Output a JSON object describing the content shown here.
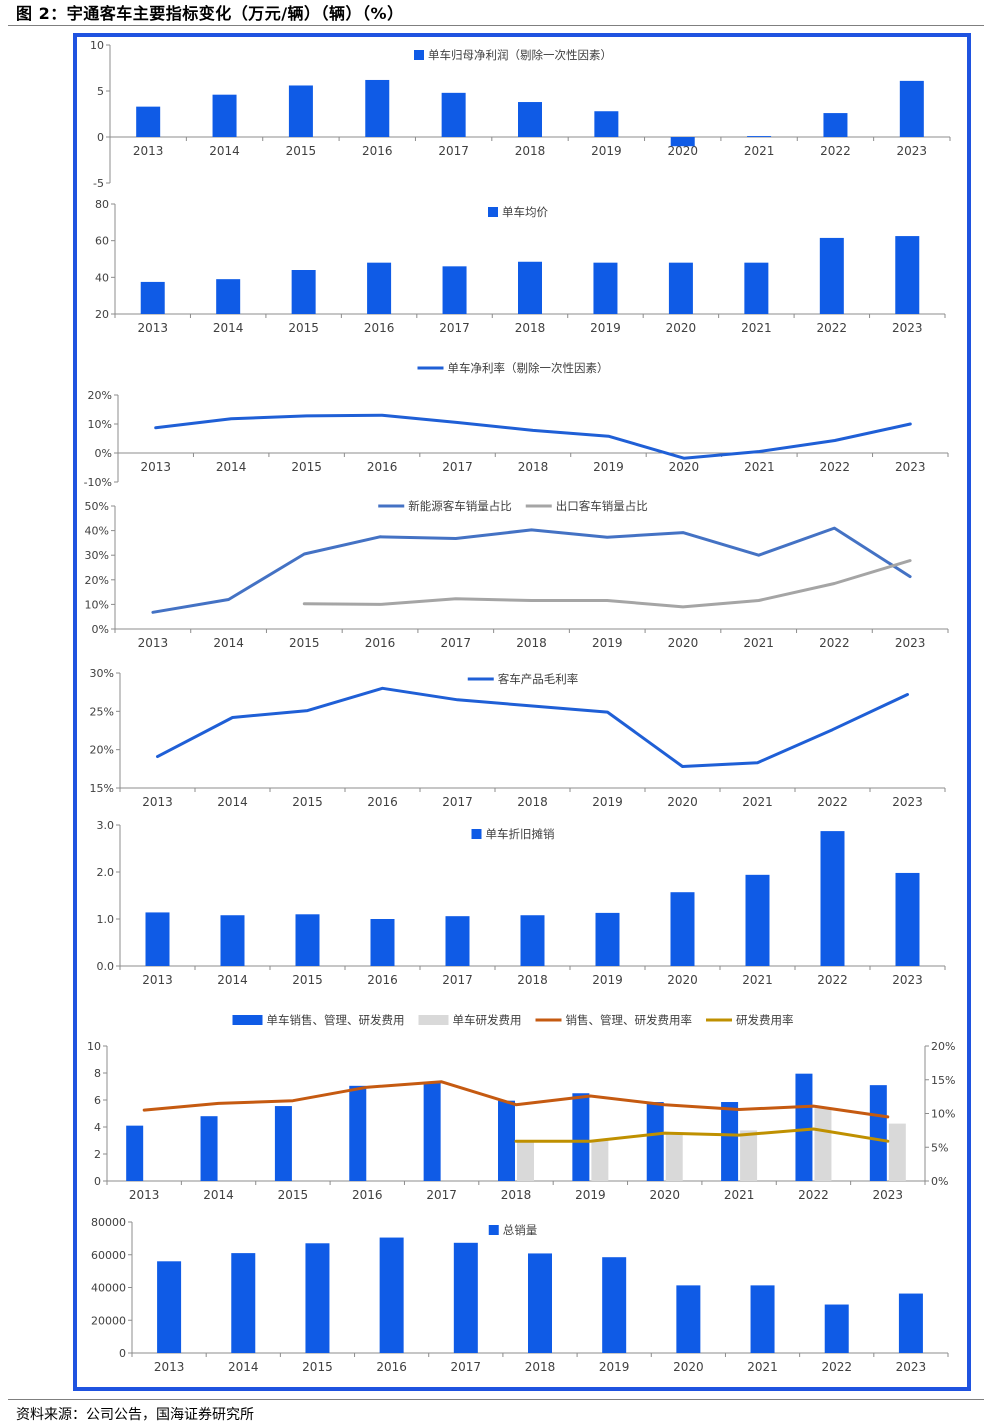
{
  "figure": {
    "title": "图 2：宇通客车主要指标变化（万元/辆）（辆）（%）",
    "source": "资料来源：公司公告，国海证券研究所",
    "accent_color": "#0f5be6",
    "frame_color": "#1f53e0"
  },
  "chart_data": [
    {
      "type": "bar",
      "categories": [
        "2013",
        "2014",
        "2015",
        "2016",
        "2017",
        "2018",
        "2019",
        "2020",
        "2021",
        "2022",
        "2023"
      ],
      "series": [
        {
          "name": "单车归母净利润（剔除一次性因素）",
          "values": [
            3.3,
            4.6,
            5.6,
            6.2,
            4.8,
            3.8,
            2.8,
            -1.0,
            0.1,
            2.6,
            6.1
          ],
          "color": "#0f5be6"
        }
      ],
      "yticks": [
        "10",
        "5",
        "0",
        "-5"
      ],
      "ylim": [
        -5,
        10
      ],
      "legend": "top-center"
    },
    {
      "type": "bar",
      "categories": [
        "2013",
        "2014",
        "2015",
        "2016",
        "2017",
        "2018",
        "2019",
        "2020",
        "2021",
        "2022",
        "2023"
      ],
      "series": [
        {
          "name": "单车均价",
          "values": [
            37.5,
            39,
            44,
            48,
            46,
            48.5,
            48,
            48,
            48,
            61.5,
            62.5
          ],
          "color": "#0f5be6"
        }
      ],
      "yticks": [
        "80",
        "60",
        "40",
        "20"
      ],
      "ylim": [
        20,
        80
      ],
      "legend": "top-center"
    },
    {
      "type": "line",
      "categories": [
        "2013",
        "2014",
        "2015",
        "2016",
        "2017",
        "2018",
        "2019",
        "2020",
        "2021",
        "2022",
        "2023"
      ],
      "series": [
        {
          "name": "单车净利率（剔除一次性因素）",
          "values": [
            8.7,
            11.8,
            12.8,
            13.0,
            10.5,
            7.8,
            5.8,
            -1.8,
            0.5,
            4.3,
            10.0
          ],
          "color": "#1f5fd6"
        }
      ],
      "yticks": [
        "20%",
        "10%",
        "0%",
        "-10%"
      ],
      "ylim": [
        -10,
        20
      ],
      "legend": "top-center"
    },
    {
      "type": "line",
      "categories": [
        "2013",
        "2014",
        "2015",
        "2016",
        "2017",
        "2018",
        "2019",
        "2020",
        "2021",
        "2022",
        "2023"
      ],
      "series": [
        {
          "name": "新能源客车销量占比",
          "values": [
            6.8,
            12,
            30.5,
            37.5,
            36.8,
            40.3,
            37.3,
            39.2,
            30,
            41,
            21.3
          ],
          "color": "#4472c4"
        },
        {
          "name": "出口客车销量占比",
          "values": [
            null,
            null,
            10.3,
            10,
            12.3,
            11.6,
            11.6,
            9,
            11.6,
            18.5,
            27.8
          ],
          "color": "#a5a5a5"
        }
      ],
      "yticks": [
        "50%",
        "40%",
        "30%",
        "20%",
        "10%",
        "0%"
      ],
      "ylim": [
        0,
        50
      ],
      "legend": "top-center"
    },
    {
      "type": "line",
      "categories": [
        "2013",
        "2014",
        "2015",
        "2016",
        "2017",
        "2018",
        "2019",
        "2020",
        "2021",
        "2022",
        "2023"
      ],
      "series": [
        {
          "name": "客车产品毛利率",
          "values": [
            19.1,
            24.2,
            25.1,
            28,
            26.5,
            25.7,
            24.9,
            17.8,
            18.3,
            22.6,
            27.2
          ],
          "color": "#1f5fd6"
        }
      ],
      "yticks": [
        "30%",
        "25%",
        "20%",
        "15%"
      ],
      "ylim": [
        15,
        30
      ],
      "legend": "top-center"
    },
    {
      "type": "bar",
      "categories": [
        "2013",
        "2014",
        "2015",
        "2016",
        "2017",
        "2018",
        "2019",
        "2020",
        "2021",
        "2022",
        "2023"
      ],
      "series": [
        {
          "name": "单车折旧摊销",
          "values": [
            1.14,
            1.08,
            1.1,
            1.0,
            1.06,
            1.08,
            1.13,
            1.57,
            1.94,
            2.87,
            1.98
          ],
          "color": "#0f5be6"
        }
      ],
      "yticks": [
        "3.0",
        "2.0",
        "1.0",
        "0.0"
      ],
      "ylim": [
        0,
        3
      ],
      "legend": "top-center"
    },
    {
      "type": "bar",
      "categories": [
        "2013",
        "2014",
        "2015",
        "2016",
        "2017",
        "2018",
        "2019",
        "2020",
        "2021",
        "2022",
        "2023"
      ],
      "series": [
        {
          "name": "单车销售、管理、研发费用",
          "values": [
            4.1,
            4.8,
            5.55,
            7.05,
            7.35,
            5.95,
            6.5,
            5.85,
            5.85,
            7.95,
            7.1
          ],
          "color": "#0f5be6",
          "axis": "left",
          "mark": "bar"
        },
        {
          "name": "单车研发费用",
          "values": [
            null,
            null,
            null,
            null,
            null,
            3.0,
            3.0,
            3.6,
            3.75,
            5.4,
            4.25
          ],
          "color": "#d9d9d9",
          "axis": "left",
          "mark": "bar"
        },
        {
          "name": "销售、管理、研发费用率",
          "values": [
            10.5,
            11.5,
            11.9,
            13.9,
            14.7,
            11.3,
            12.6,
            11.3,
            10.6,
            11.1,
            9.5
          ],
          "color": "#c55a11",
          "axis": "right",
          "mark": "line"
        },
        {
          "name": "研发费用率",
          "values": [
            null,
            null,
            null,
            null,
            null,
            5.9,
            5.9,
            7.1,
            6.8,
            7.7,
            5.9
          ],
          "color": "#bf9000",
          "axis": "right",
          "mark": "line"
        }
      ],
      "yticks": [
        "10",
        "8",
        "6",
        "4",
        "2",
        "0"
      ],
      "ylim": [
        0,
        10
      ],
      "y2ticks": [
        "20%",
        "15%",
        "10%",
        "5%",
        "0%"
      ],
      "y2lim": [
        0,
        20
      ],
      "legend": "top-center"
    },
    {
      "type": "bar",
      "categories": [
        "2013",
        "2014",
        "2015",
        "2016",
        "2017",
        "2018",
        "2019",
        "2020",
        "2021",
        "2022",
        "2023"
      ],
      "series": [
        {
          "name": "总销量",
          "values": [
            56000,
            61000,
            67000,
            70500,
            67300,
            60800,
            58500,
            41300,
            41300,
            29600,
            36300
          ],
          "color": "#0f5be6"
        }
      ],
      "yticks": [
        "80000",
        "60000",
        "40000",
        "20000",
        "0"
      ],
      "ylim": [
        0,
        80000
      ],
      "legend": "top-center"
    }
  ]
}
